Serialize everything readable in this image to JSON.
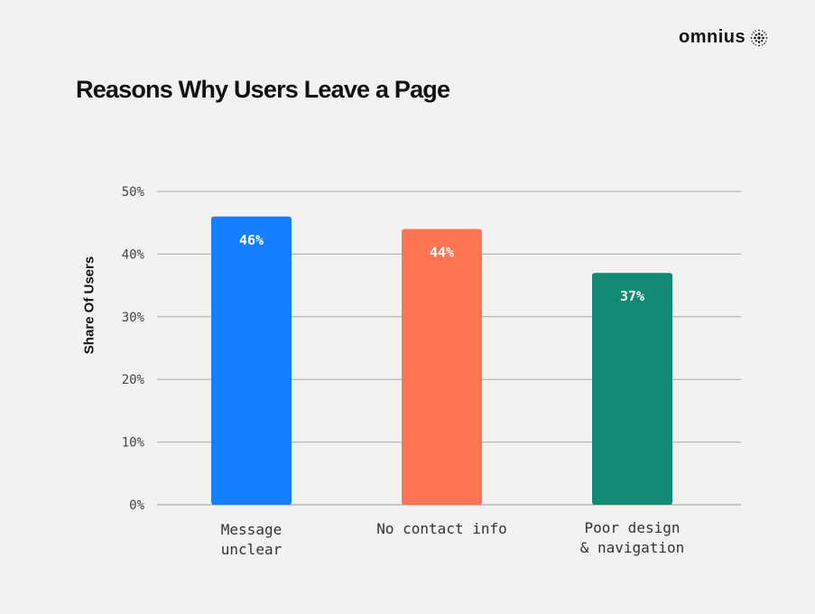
{
  "brand": {
    "name": "omnius",
    "icon": "dotted-sphere-icon"
  },
  "chart_data": {
    "type": "bar",
    "title": "Reasons Why Users Leave a Page",
    "xlabel": "",
    "ylabel": "Share Of Users",
    "categories": [
      [
        "Message",
        "unclear"
      ],
      [
        "No contact info"
      ],
      [
        "Poor design",
        "& navigation"
      ]
    ],
    "values": [
      46,
      44,
      37
    ],
    "value_labels": [
      "46%",
      "44%",
      "37%"
    ],
    "colors": [
      "#1580ff",
      "#ff7452",
      "#128a74"
    ],
    "ylim": [
      0,
      50
    ],
    "yticks": [
      0,
      10,
      20,
      30,
      40,
      50
    ],
    "ytick_labels": [
      "0%",
      "10%",
      "20%",
      "30%",
      "40%",
      "50%"
    ],
    "grid": true,
    "legend": "none"
  }
}
